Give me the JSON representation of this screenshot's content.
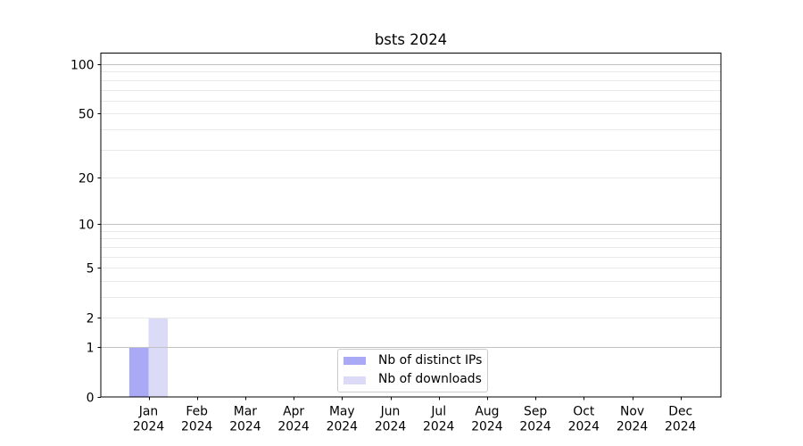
{
  "chart_data": {
    "type": "bar",
    "title": "bsts 2024",
    "categories": [
      "Jan",
      "Feb",
      "Mar",
      "Apr",
      "May",
      "Jun",
      "Jul",
      "Aug",
      "Sep",
      "Oct",
      "Nov",
      "Dec"
    ],
    "x_year_label": "2024",
    "series": [
      {
        "name": "Nb of distinct IPs",
        "color": "#a9a9f6",
        "values": [
          1,
          0,
          0,
          0,
          0,
          0,
          0,
          0,
          0,
          0,
          0,
          0
        ]
      },
      {
        "name": "Nb of downloads",
        "color": "#dbdbf7",
        "values": [
          2,
          0,
          0,
          0,
          0,
          0,
          0,
          0,
          0,
          0,
          0,
          0
        ]
      }
    ],
    "yscale": "log1p",
    "ylim": [
      0,
      117
    ],
    "ytick_labels": [
      0,
      1,
      2,
      5,
      10,
      20,
      50,
      100
    ],
    "gridlines_major": [
      1,
      10,
      100
    ],
    "gridlines_minor": [
      2,
      3,
      4,
      5,
      6,
      7,
      8,
      9,
      20,
      30,
      40,
      50,
      60,
      70,
      80,
      90
    ],
    "grid_major_color": "#c3c3c3",
    "grid_minor_color": "#e9e9e9",
    "legend": {
      "position": "lower center"
    },
    "xlabel": "",
    "ylabel": ""
  }
}
